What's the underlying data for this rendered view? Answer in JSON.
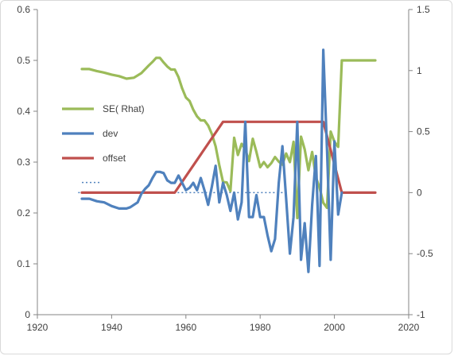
{
  "chart_data": {
    "type": "line",
    "title": "",
    "xlabel": "",
    "ylabel": "",
    "grid": false,
    "legend_position": "left-center",
    "x_axis": {
      "min": 1920,
      "max": 2020,
      "ticks": [
        1920,
        1940,
        1960,
        1980,
        2000,
        2020
      ],
      "labels": [
        "1920",
        "1940",
        "1960",
        "1980",
        "2000",
        "2020"
      ]
    },
    "y_left": {
      "min": 0,
      "max": 0.6,
      "ticks": [
        0,
        0.1,
        0.2,
        0.3,
        0.4,
        0.5,
        0.6
      ],
      "labels": [
        "0",
        "0.1",
        "0.2",
        "0.3",
        "0.4",
        "0.5",
        "0.6"
      ]
    },
    "y_right": {
      "min": -1,
      "max": 1.5,
      "ticks": [
        -1,
        -0.5,
        0,
        0.5,
        1,
        1.5
      ],
      "labels": [
        "-1",
        "-0.5",
        "0",
        "0.5",
        "1",
        "1.5"
      ]
    },
    "series": [
      {
        "name": "SE( Rhat)",
        "axis": "left",
        "color": "#9bbb59",
        "points": [
          [
            1932,
            0.483
          ],
          [
            1934,
            0.483
          ],
          [
            1936,
            0.479
          ],
          [
            1938,
            0.476
          ],
          [
            1940,
            0.472
          ],
          [
            1942,
            0.469
          ],
          [
            1944,
            0.464
          ],
          [
            1946,
            0.466
          ],
          [
            1948,
            0.475
          ],
          [
            1950,
            0.49
          ],
          [
            1951,
            0.497
          ],
          [
            1952,
            0.505
          ],
          [
            1953,
            0.505
          ],
          [
            1954,
            0.496
          ],
          [
            1955,
            0.488
          ],
          [
            1956,
            0.482
          ],
          [
            1957,
            0.482
          ],
          [
            1958,
            0.467
          ],
          [
            1959,
            0.445
          ],
          [
            1960,
            0.427
          ],
          [
            1961,
            0.42
          ],
          [
            1962,
            0.403
          ],
          [
            1963,
            0.39
          ],
          [
            1964,
            0.382
          ],
          [
            1965,
            0.382
          ],
          [
            1966,
            0.372
          ],
          [
            1967,
            0.355
          ],
          [
            1968,
            0.331
          ],
          [
            1969,
            0.294
          ],
          [
            1970,
            0.261
          ],
          [
            1971,
            0.26
          ],
          [
            1972,
            0.243
          ],
          [
            1973,
            0.348
          ],
          [
            1974,
            0.314
          ],
          [
            1975,
            0.336
          ],
          [
            1976,
            0.325
          ],
          [
            1977,
            0.302
          ],
          [
            1978,
            0.346
          ],
          [
            1979,
            0.32
          ],
          [
            1980,
            0.29
          ],
          [
            1981,
            0.3
          ],
          [
            1982,
            0.29
          ],
          [
            1983,
            0.298
          ],
          [
            1984,
            0.31
          ],
          [
            1985,
            0.301
          ],
          [
            1986,
            0.295
          ],
          [
            1987,
            0.317
          ],
          [
            1988,
            0.3
          ],
          [
            1989,
            0.34
          ],
          [
            1990,
            0.19
          ],
          [
            1991,
            0.35
          ],
          [
            1992,
            0.325
          ],
          [
            1993,
            0.284
          ],
          [
            1994,
            0.32
          ],
          [
            1995,
            0.27
          ],
          [
            1996,
            0.25
          ],
          [
            1997,
            0.22
          ],
          [
            1998,
            0.21
          ],
          [
            1999,
            0.36
          ],
          [
            2000,
            0.34
          ],
          [
            2001,
            0.33
          ],
          [
            2002,
            0.5
          ],
          [
            2005,
            0.5
          ],
          [
            2008,
            0.5
          ],
          [
            2011,
            0.5
          ]
        ]
      },
      {
        "name": "dev",
        "axis": "right",
        "color": "#4f81bd",
        "points": [
          [
            1932,
            -0.05
          ],
          [
            1934,
            -0.05
          ],
          [
            1936,
            -0.07
          ],
          [
            1938,
            -0.08
          ],
          [
            1940,
            -0.11
          ],
          [
            1942,
            -0.13
          ],
          [
            1944,
            -0.13
          ],
          [
            1945,
            -0.12
          ],
          [
            1947,
            -0.08
          ],
          [
            1948,
            -0.01
          ],
          [
            1949,
            0.03
          ],
          [
            1950,
            0.06
          ],
          [
            1951,
            0.12
          ],
          [
            1952,
            0.17
          ],
          [
            1953,
            0.17
          ],
          [
            1954,
            0.16
          ],
          [
            1955,
            0.1
          ],
          [
            1956,
            0.08
          ],
          [
            1957,
            0.08
          ],
          [
            1958,
            0.14
          ],
          [
            1959,
            0.08
          ],
          [
            1960,
            0.02
          ],
          [
            1961,
            0.04
          ],
          [
            1962,
            0.08
          ],
          [
            1963,
            0.02
          ],
          [
            1964,
            0.12
          ],
          [
            1965,
            0.02
          ],
          [
            1966,
            -0.1
          ],
          [
            1967,
            0.05
          ],
          [
            1968,
            0.22
          ],
          [
            1969,
            -0.08
          ],
          [
            1970,
            0.08
          ],
          [
            1971,
            -0.02
          ],
          [
            1972,
            -0.15
          ],
          [
            1973,
            0.0
          ],
          [
            1974,
            -0.22
          ],
          [
            1975,
            -0.08
          ],
          [
            1976,
            0.58
          ],
          [
            1977,
            -0.2
          ],
          [
            1978,
            -0.2
          ],
          [
            1979,
            -0.02
          ],
          [
            1980,
            -0.2
          ],
          [
            1981,
            -0.2
          ],
          [
            1982,
            -0.35
          ],
          [
            1983,
            -0.48
          ],
          [
            1984,
            -0.38
          ],
          [
            1985,
            0.08
          ],
          [
            1986,
            0.38
          ],
          [
            1987,
            -0.05
          ],
          [
            1988,
            -0.5
          ],
          [
            1989,
            -0.2
          ],
          [
            1990,
            0.58
          ],
          [
            1991,
            -0.55
          ],
          [
            1992,
            -0.25
          ],
          [
            1993,
            -0.65
          ],
          [
            1994,
            -0.1
          ],
          [
            1995,
            0.3
          ],
          [
            1996,
            -0.6
          ],
          [
            1997,
            1.17
          ],
          [
            1998,
            0.35
          ],
          [
            1999,
            -0.55
          ],
          [
            2000,
            0.42
          ],
          [
            2001,
            -0.18
          ],
          [
            2002,
            0.0
          ]
        ]
      },
      {
        "name": "offset",
        "axis": "right",
        "color": "#c0504d",
        "points": [
          [
            1932,
            0
          ],
          [
            1957,
            0
          ],
          [
            1970,
            0.58
          ],
          [
            1997,
            0.58
          ],
          [
            2002,
            0
          ],
          [
            2011,
            0
          ]
        ]
      }
    ],
    "extra_marks": [
      {
        "label": "",
        "color": "#4f81bd",
        "style": "dotted",
        "axis": "left",
        "y": 0.26,
        "x_start": 1932,
        "x_end": 1937
      },
      {
        "label": "",
        "color": "#4f81bd",
        "style": "dotted",
        "axis": "right",
        "y": 0.0,
        "x_start": 1931,
        "x_end": 1987
      }
    ]
  }
}
